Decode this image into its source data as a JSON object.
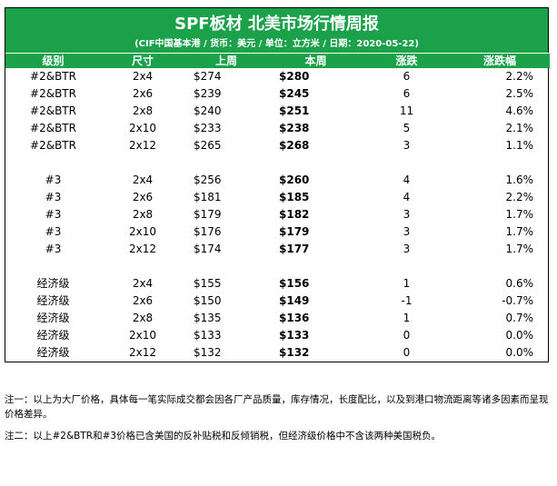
{
  "report": {
    "title": "SPF板材 北美市场行情周报",
    "subtitle": "(CIF中国基本港 / 货币：美元 / 单位：立方米 / 日期：2020-05-22)"
  },
  "table": {
    "headers": [
      "级别",
      "尺寸",
      "上周",
      "本周",
      "涨跌",
      "涨跌幅"
    ],
    "groups": [
      [
        [
          "#2&BTR",
          "2x4",
          "$274",
          "$280",
          "6",
          "2.2%"
        ],
        [
          "#2&BTR",
          "2x6",
          "$239",
          "$245",
          "6",
          "2.5%"
        ],
        [
          "#2&BTR",
          "2x8",
          "$240",
          "$251",
          "11",
          "4.6%"
        ],
        [
          "#2&BTR",
          "2x10",
          "$233",
          "$238",
          "5",
          "2.1%"
        ],
        [
          "#2&BTR",
          "2x12",
          "$265",
          "$268",
          "3",
          "1.1%"
        ]
      ],
      [
        [
          "#3",
          "2x4",
          "$256",
          "$260",
          "4",
          "1.6%"
        ],
        [
          "#3",
          "2x6",
          "$181",
          "$185",
          "4",
          "2.2%"
        ],
        [
          "#3",
          "2x8",
          "$179",
          "$182",
          "3",
          "1.7%"
        ],
        [
          "#3",
          "2x10",
          "$176",
          "$179",
          "3",
          "1.7%"
        ],
        [
          "#3",
          "2x12",
          "$174",
          "$177",
          "3",
          "1.7%"
        ]
      ],
      [
        [
          "经济级",
          "2x4",
          "$155",
          "$156",
          "1",
          "0.6%"
        ],
        [
          "经济级",
          "2x6",
          "$150",
          "$149",
          "-1",
          "-0.7%"
        ],
        [
          "经济级",
          "2x8",
          "$135",
          "$136",
          "1",
          "0.7%"
        ],
        [
          "经济级",
          "2x10",
          "$133",
          "$133",
          "0",
          "0.0%"
        ],
        [
          "经济级",
          "2x12",
          "$132",
          "$132",
          "0",
          "0.0%"
        ]
      ]
    ]
  },
  "notes": [
    "注一：以上为大厂价格，具体每一笔实际成交都会因各厂产品质量，库存情况，长度配比，以及到港口物流距离等诸多因素而呈现价格差异。",
    "注二：以上#2&BTR和#3价格已含美国的反补贴税和反倾销税，但经济级价格中不含该两种美国税负。"
  ],
  "colors": {
    "header_green": "#1aa14a",
    "header_text": "#ffffff"
  }
}
